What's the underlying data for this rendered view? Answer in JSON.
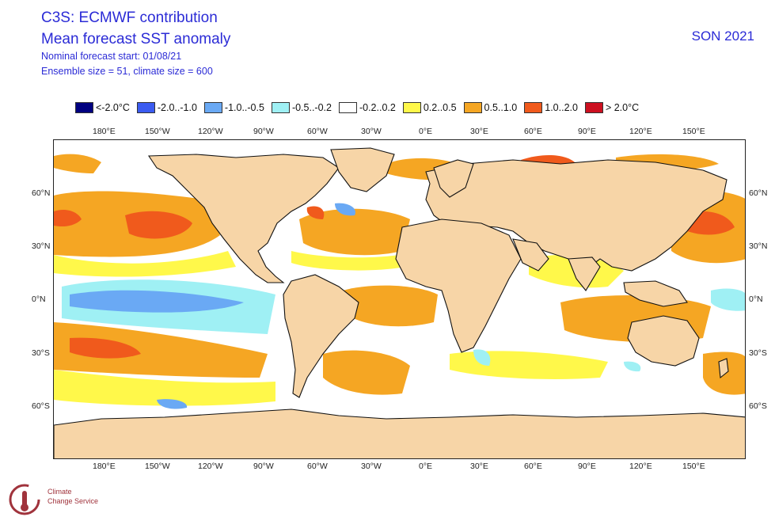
{
  "header": {
    "title": "C3S: ECMWF contribution",
    "subtitle": "Mean forecast SST anomaly",
    "forecast_start": "Nominal forecast start: 01/08/21",
    "ensemble": "Ensemble size = 51, climate size = 600",
    "season": "SON 2021"
  },
  "legend": [
    {
      "label": "<-2.0°C",
      "color": "#000080"
    },
    {
      "label": "-2.0..-1.0",
      "color": "#3b5bf0"
    },
    {
      "label": "-1.0..-0.5",
      "color": "#6aa9f4"
    },
    {
      "label": "-0.5..-0.2",
      "color": "#9ff0f4"
    },
    {
      "label": "-0.2..0.2",
      "color": "#ffffff"
    },
    {
      "label": "0.2..0.5",
      "color": "#fff84a"
    },
    {
      "label": "0.5..1.0",
      "color": "#f5a623"
    },
    {
      "label": "1.0..2.0",
      "color": "#f05a1c"
    },
    {
      "label": "> 2.0°C",
      "color": "#cc1020"
    }
  ],
  "axes": {
    "lon_ticks": [
      "180°E",
      "150°W",
      "120°W",
      "90°W",
      "60°W",
      "30°W",
      "0°E",
      "30°E",
      "60°E",
      "90°E",
      "120°E",
      "150°E"
    ],
    "lat_ticks": [
      "60°N",
      "30°N",
      "0°N",
      "30°S",
      "60°S"
    ]
  },
  "colors": {
    "land": "#f7d5a7",
    "coast": "#111111",
    "header_text": "#2b2bd6"
  },
  "logo": {
    "line1": "Climate",
    "line2": "Change Service"
  }
}
